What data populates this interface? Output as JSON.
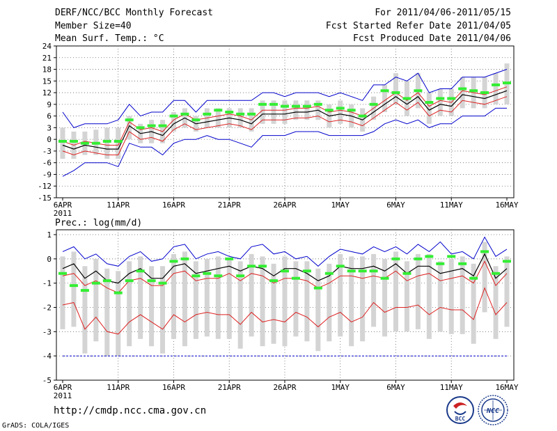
{
  "header": {
    "title": "DERF/NCC/BCC Monthly Forecast",
    "member_size": "Member Size=40",
    "variable": "Mean Surf. Temp.: °C",
    "period": "For 2011/04/06-2011/05/15",
    "refer_date": "Fcst Started Refer Date 2011/04/05",
    "produced_date": "Fcst Produced Date 2011/04/06"
  },
  "footer": {
    "url": "http://cmdp.ncc.cma.gov.cn",
    "credit": "GrADS: COLA/IGES",
    "logo_bcc_text": "BCC",
    "logo_ncc_text": "NCC"
  },
  "colors": {
    "ensemble_mean": "#000000",
    "spread": "#dd2222",
    "extremes": "#0000cc",
    "box": "#d4d4d4",
    "mean_marker": "#33ee33",
    "grid": "#666666"
  },
  "chart_data": [
    {
      "type": "line",
      "title": "Mean Surf. Temp.: °C",
      "xlabel": "",
      "ylabel": "°C",
      "x_tick_labels": [
        "6APR",
        "11APR",
        "16APR",
        "21APR",
        "26APR",
        "1MAY",
        "6MAY",
        "11MAY",
        "16MAY"
      ],
      "x_tick_days": [
        0,
        5,
        10,
        15,
        20,
        25,
        30,
        35,
        40
      ],
      "x_year_label": "2011",
      "ylim": [
        -15,
        24
      ],
      "y_ticks": [
        -15,
        -12,
        -9,
        -6,
        -3,
        0,
        3,
        6,
        9,
        12,
        15,
        18,
        21,
        24
      ],
      "grid": true,
      "series": [
        {
          "name": "ensemble mean",
          "values": [
            -1.5,
            -2.5,
            -1.5,
            -2,
            -2.5,
            -2.5,
            3.5,
            1.5,
            2,
            1,
            4,
            5.5,
            4,
            4.5,
            5,
            5.5,
            5,
            4,
            6.5,
            6.5,
            6.5,
            7,
            7,
            7.5,
            6,
            6.5,
            6,
            5,
            7,
            9,
            11,
            9,
            11,
            7.5,
            9,
            8.5,
            11.5,
            11,
            10.5,
            11.5,
            12.5
          ]
        },
        {
          "name": "upper spread",
          "values": [
            -0.5,
            -1.5,
            -0.5,
            -1,
            -1.5,
            -1.5,
            4.5,
            2.5,
            3,
            2,
            5,
            6.5,
            5,
            5.5,
            6,
            6.5,
            6,
            5,
            7.5,
            7.5,
            7.5,
            8,
            8,
            8.5,
            7,
            7.5,
            7,
            6,
            8,
            10,
            12,
            10,
            12,
            8.5,
            10,
            9.5,
            12.5,
            12,
            11.5,
            12.5,
            13.5
          ]
        },
        {
          "name": "lower spread",
          "values": [
            -3,
            -4,
            -3,
            -3.5,
            -4,
            -4,
            2,
            0,
            0.5,
            -0.5,
            2.5,
            4,
            2.5,
            3,
            3.5,
            4,
            3.5,
            2.5,
            5,
            5,
            5,
            5.5,
            5.5,
            6,
            4.5,
            5,
            4.5,
            3.5,
            5.5,
            7.5,
            9.5,
            7.5,
            9.5,
            6,
            7.5,
            7,
            10,
            9.5,
            9,
            10,
            11
          ]
        },
        {
          "name": "upper extreme",
          "values": [
            7,
            3,
            4,
            4,
            4,
            5,
            9,
            6,
            7,
            7,
            10,
            10,
            7,
            10,
            10,
            10,
            10,
            10,
            12,
            12,
            11,
            12,
            12,
            12,
            11,
            12,
            11,
            10,
            14,
            14,
            16,
            15,
            17,
            12,
            13,
            13,
            16,
            16,
            16,
            17,
            18
          ]
        },
        {
          "name": "lower extreme",
          "values": [
            -9.5,
            -8,
            -6,
            -6,
            -6,
            -7,
            -1,
            -2,
            -2,
            -4,
            -1,
            0,
            0,
            1,
            0,
            0,
            -1,
            -2,
            1,
            1,
            1,
            2,
            2,
            2,
            1,
            1,
            1,
            1,
            2,
            4,
            5,
            4,
            5,
            3,
            4,
            4,
            6,
            6,
            6,
            8,
            8
          ]
        }
      ],
      "mean_markers": [
        -0.5,
        -0.5,
        -1,
        -1,
        -0.5,
        -0.5,
        5,
        3,
        3.5,
        3.5,
        6,
        6.5,
        5,
        6.5,
        7.5,
        7,
        6.5,
        6.5,
        9,
        9,
        8.5,
        8.5,
        8.5,
        9,
        7.5,
        8,
        7.5,
        6,
        9,
        12.5,
        12,
        10.5,
        12.5,
        9.5,
        10.5,
        10.5,
        13,
        12.5,
        12,
        14,
        14.5
      ],
      "box_high": [
        3,
        2,
        2,
        2.5,
        3,
        3,
        6,
        4,
        5,
        5,
        7,
        8,
        6,
        8,
        8,
        8,
        8,
        8,
        10,
        10,
        10,
        10,
        10,
        10,
        9,
        10,
        9,
        8,
        11,
        14,
        17,
        15,
        17,
        12,
        13,
        13,
        16,
        16,
        16,
        17,
        19.5
      ],
      "box_low": [
        -5,
        -5,
        -4,
        -4,
        -5,
        -5,
        0,
        -1,
        -1,
        -1,
        2,
        3,
        2,
        3,
        3,
        3,
        3,
        2,
        4,
        4,
        4,
        5,
        5,
        5,
        3,
        4,
        3,
        2,
        5,
        7,
        9,
        6,
        8,
        4,
        6,
        6,
        8,
        8,
        8,
        9,
        9
      ]
    },
    {
      "type": "line",
      "title": "Prec.: log(mm/d)",
      "xlabel": "",
      "ylabel": "log(mm/d)",
      "x_tick_labels": [
        "6APR",
        "11APR",
        "16APR",
        "21APR",
        "26APR",
        "1MAY",
        "6MAY",
        "11MAY",
        "16MAY"
      ],
      "x_tick_days": [
        0,
        5,
        10,
        15,
        20,
        25,
        30,
        35,
        40
      ],
      "x_year_label": "2011",
      "ylim": [
        -5,
        1.2
      ],
      "y_ticks": [
        -5,
        -4,
        -3,
        -2,
        -1,
        0,
        1
      ],
      "grid": true,
      "series": [
        {
          "name": "ensemble mean",
          "values": [
            -0.4,
            -0.2,
            -0.8,
            -0.5,
            -0.9,
            -1.0,
            -0.6,
            -0.4,
            -0.8,
            -0.8,
            -0.3,
            -0.2,
            -0.6,
            -0.5,
            -0.4,
            -0.3,
            -0.5,
            -0.3,
            -0.4,
            -0.7,
            -0.4,
            -0.4,
            -0.6,
            -0.9,
            -0.7,
            -0.3,
            -0.4,
            -0.4,
            -0.3,
            -0.5,
            -0.2,
            -0.6,
            -0.3,
            -0.3,
            -0.6,
            -0.5,
            -0.4,
            -0.7,
            0.2,
            -0.8,
            -0.4
          ]
        },
        {
          "name": "upper spread",
          "values": [
            -0.7,
            -0.6,
            -1.1,
            -0.9,
            -1.2,
            -1.4,
            -0.9,
            -0.8,
            -1.1,
            -1.1,
            -0.6,
            -0.5,
            -0.9,
            -0.8,
            -0.8,
            -0.6,
            -0.9,
            -0.6,
            -0.7,
            -1.0,
            -0.8,
            -0.8,
            -0.9,
            -1.2,
            -1.0,
            -0.7,
            -0.7,
            -0.8,
            -0.7,
            -0.8,
            -0.5,
            -0.9,
            -0.7,
            -0.6,
            -0.9,
            -0.8,
            -0.7,
            -1.0,
            -0.1,
            -1.1,
            -0.6
          ]
        },
        {
          "name": "lower spread",
          "values": [
            -1.9,
            -1.8,
            -2.9,
            -2.4,
            -3.0,
            -3.1,
            -2.6,
            -2.3,
            -2.6,
            -2.9,
            -2.3,
            -2.6,
            -2.3,
            -2.2,
            -2.3,
            -2.3,
            -2.7,
            -2.2,
            -2.6,
            -2.5,
            -2.6,
            -2.2,
            -2.4,
            -2.8,
            -2.4,
            -2.2,
            -2.6,
            -2.4,
            -1.8,
            -2.2,
            -2.0,
            -2.0,
            -1.9,
            -2.3,
            -2.0,
            -2.1,
            -2.1,
            -2.5,
            -1.2,
            -2.3,
            -1.8
          ]
        },
        {
          "name": "upper extreme",
          "values": [
            0.3,
            0.5,
            0.0,
            0.2,
            -0.2,
            -0.3,
            0.1,
            0.3,
            -0.1,
            0.0,
            0.5,
            0.6,
            0.0,
            0.2,
            0.3,
            0.1,
            0.0,
            0.5,
            0.6,
            0.2,
            0.3,
            0.0,
            0.1,
            -0.3,
            0.1,
            0.4,
            0.3,
            0.2,
            0.5,
            0.3,
            0.5,
            0.2,
            0.6,
            0.3,
            0.7,
            0.2,
            0.3,
            0.0,
            0.9,
            0.1,
            0.4
          ]
        },
        {
          "name": "lower extreme",
          "values": [
            -4,
            -4,
            -4,
            -4,
            -4,
            -4,
            -4,
            -4,
            -4,
            -4,
            -4,
            -4,
            -4,
            -4,
            -4,
            -4,
            -4,
            -4,
            -4,
            -4,
            -4,
            -4,
            -4,
            -4,
            -4,
            -4,
            -4,
            -4,
            -4,
            -4,
            -4,
            -4,
            -4,
            -4,
            -4,
            -4,
            -4,
            -4,
            -4,
            -4,
            -4
          ]
        }
      ],
      "mean_markers": [
        -0.6,
        -1.1,
        -1.3,
        -1.0,
        -0.9,
        -1.4,
        -0.9,
        -0.5,
        -0.9,
        -1.0,
        -0.1,
        0.0,
        -0.7,
        -0.6,
        -0.7,
        0.0,
        -0.7,
        -0.3,
        -0.3,
        -0.9,
        -0.5,
        -0.8,
        -0.5,
        -1.2,
        -0.6,
        -0.3,
        -0.5,
        -0.5,
        -0.5,
        -0.8,
        0.0,
        -0.6,
        0.0,
        0.1,
        -0.2,
        0.1,
        -0.2,
        -0.8,
        0.3,
        -0.6,
        -0.1
      ]
    }
  ]
}
